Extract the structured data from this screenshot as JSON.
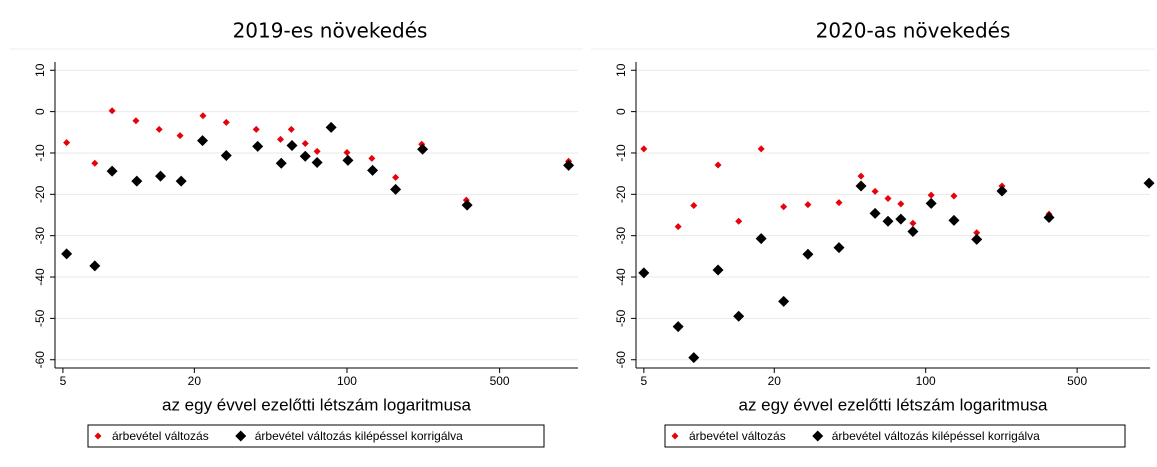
{
  "chart_data": [
    {
      "type": "scatter",
      "title": "2019-es növekedés",
      "xlabel": "az egy évvel ezelőtti létszám logaritmusa",
      "xscale": "log",
      "xlim": [
        4.6,
        1143
      ],
      "xticks": [
        5,
        20,
        100,
        500
      ],
      "ylim": [
        -62,
        12
      ],
      "yticks": [
        10,
        0,
        -10,
        -20,
        -30,
        -40,
        -50,
        -60
      ],
      "grid": true,
      "series": [
        {
          "name": "árbevétel változás",
          "color": "#e8000b",
          "marker": "small-diamond",
          "x": [
            5.2,
            7.0,
            8.4,
            10.8,
            13.8,
            17.2,
            21.9,
            28.0,
            38.4,
            49.6,
            55.6,
            64.4,
            73,
            100,
            130,
            167,
            220,
            352,
            1035
          ],
          "values": [
            -7.5,
            -12.5,
            0.2,
            -2.2,
            -4.3,
            -5.8,
            -1,
            -2.6,
            -4.3,
            -6.7,
            -4.3,
            -7.7,
            -9.6,
            -9.9,
            -11.3,
            -15.9,
            -7.9,
            -21.4,
            -12.0
          ]
        },
        {
          "name": "árbevétel változás kilépéssel korrigálva",
          "color": "#000000",
          "marker": "diamond",
          "x": [
            5.2,
            7.0,
            8.4,
            10.9,
            14,
            17.4,
            21.8,
            28,
            39,
            50,
            56,
            64.4,
            73,
            84.6,
            101,
            131,
            167,
            222,
            355,
            1035
          ],
          "values": [
            -34.4,
            -37.3,
            -14.4,
            -16.8,
            -15.6,
            -16.8,
            -7.0,
            -10.6,
            -8.4,
            -12.5,
            -8.2,
            -10.8,
            -12.3,
            -3.8,
            -11.8,
            -14.2,
            -18.8,
            -9.1,
            -22.6,
            -13
          ]
        }
      ]
    },
    {
      "type": "scatter",
      "title": "2020-as növekedés",
      "xlabel": "az egy évvel ezelőtti létszám logaritmusa",
      "xscale": "log",
      "xlim": [
        4.6,
        1085
      ],
      "xticks": [
        5,
        20,
        100,
        500
      ],
      "ylim": [
        -62,
        12
      ],
      "yticks": [
        10,
        0,
        -10,
        -20,
        -30,
        -40,
        -50,
        -60
      ],
      "grid": true,
      "series": [
        {
          "name": "árbevétel változás",
          "color": "#e8000b",
          "marker": "small-diamond",
          "x": [
            5,
            7.2,
            8.5,
            11,
            13.7,
            17.4,
            22.1,
            28.6,
            39.8,
            50.3,
            58.4,
            67,
            76.8,
            87.3,
            106,
            135,
            172,
            225,
            371
          ],
          "values": [
            -9,
            -27.8,
            -22.7,
            -12.9,
            -26.5,
            -9,
            -23,
            -22.5,
            -22,
            -15.6,
            -19.3,
            -21,
            -22.3,
            -27,
            -20.2,
            -20.4,
            -29.3,
            -18,
            -24.8
          ]
        },
        {
          "name": "árbevétel változás kilépéssel korrigálva",
          "color": "#000000",
          "marker": "diamond",
          "x": [
            5,
            7.2,
            8.5,
            11,
            13.7,
            17.4,
            22.1,
            28.6,
            39.8,
            50.3,
            58.4,
            67,
            76.8,
            87.3,
            106,
            135,
            172,
            225,
            371,
            1074
          ],
          "values": [
            -39,
            -52,
            -59.5,
            -38.3,
            -49.5,
            -30.7,
            -45.9,
            -34.5,
            -32.9,
            -18,
            -24.6,
            -26.5,
            -26,
            -29,
            -22.2,
            -26.3,
            -30.9,
            -19.2,
            -25.6,
            -17.3
          ]
        }
      ]
    }
  ]
}
